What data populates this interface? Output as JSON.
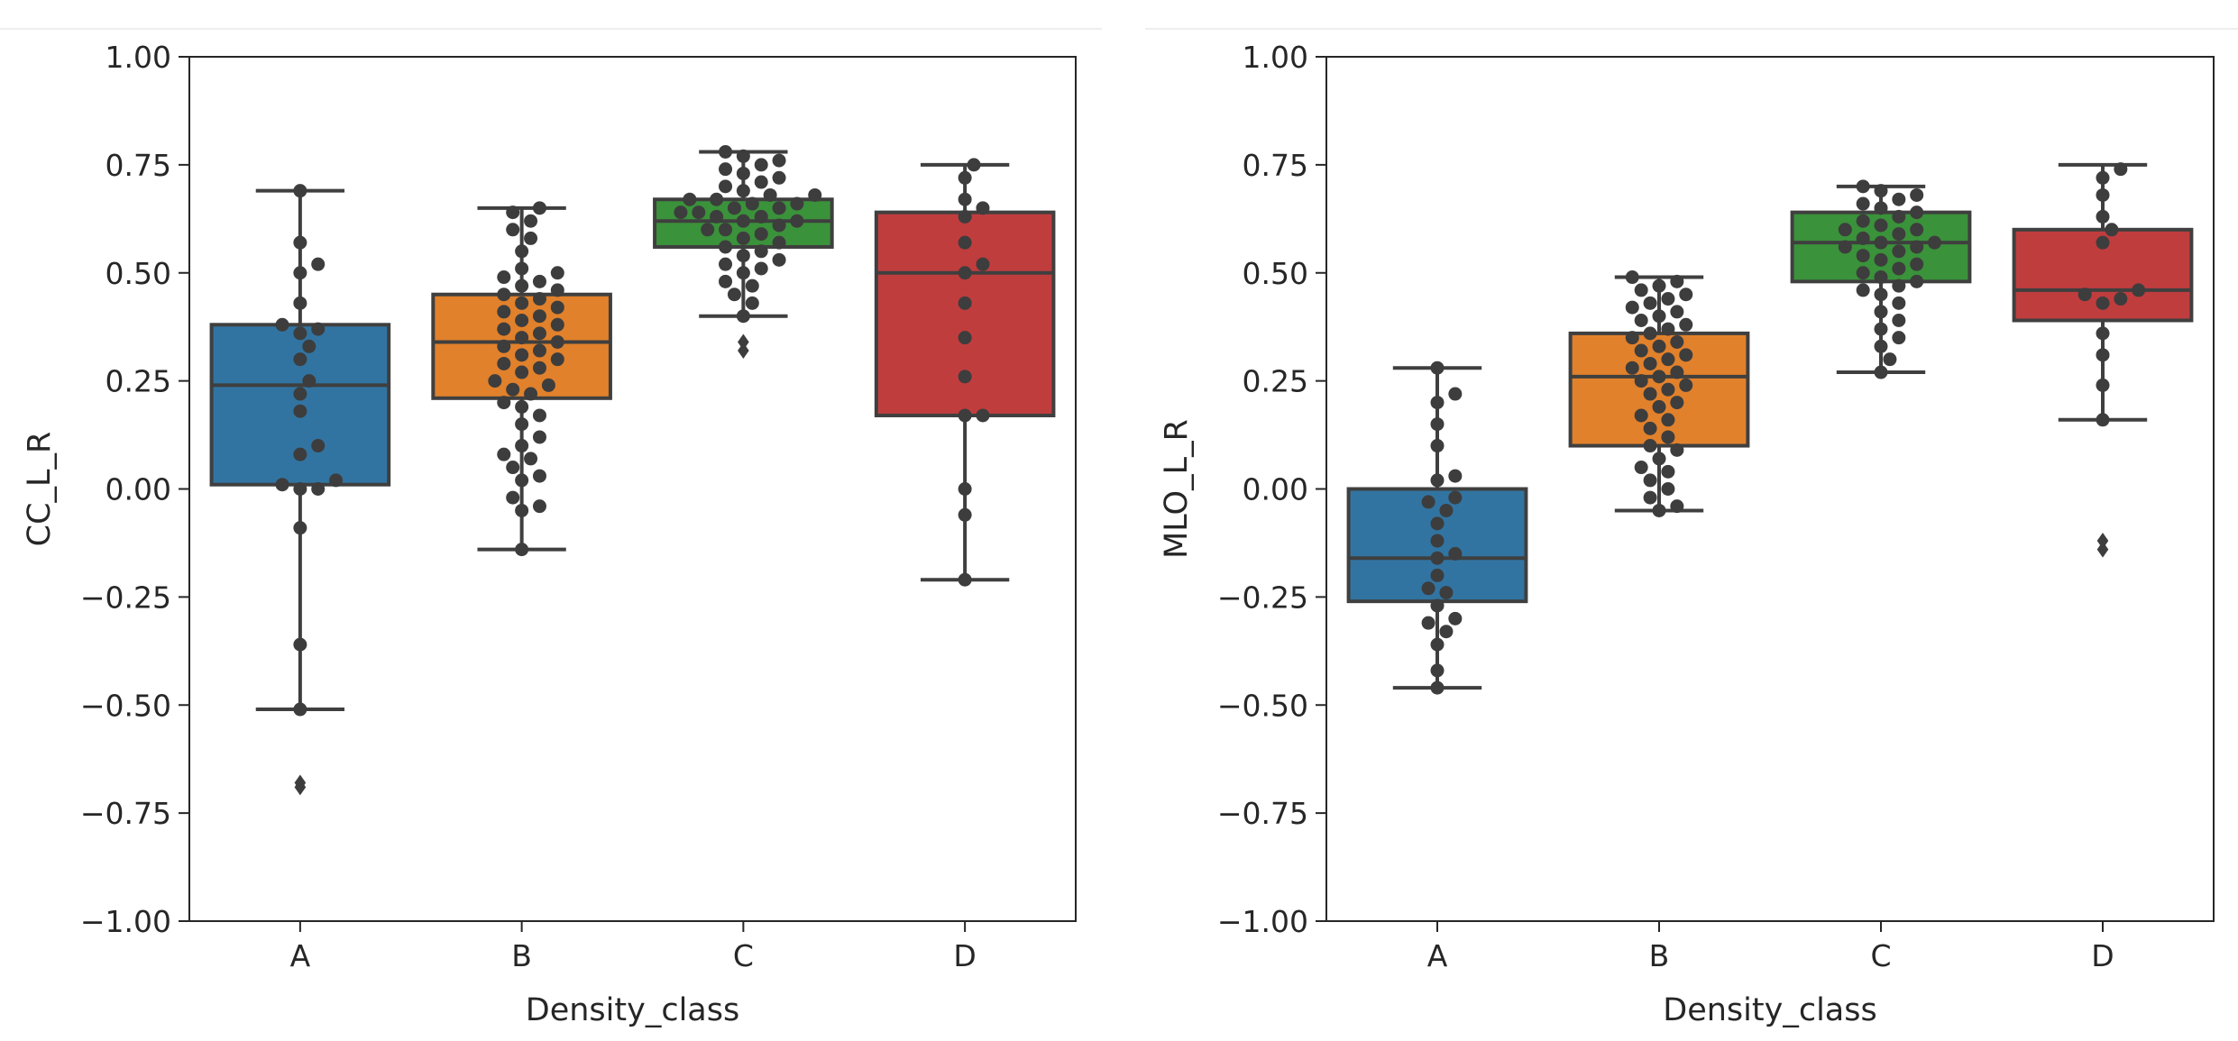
{
  "chart_data": [
    {
      "type": "box",
      "xlabel": "Density_class",
      "ylabel": "CC_L_R",
      "ylim": [
        -1.0,
        1.0
      ],
      "yticks": [
        "1.00",
        "0.75",
        "0.50",
        "0.25",
        "0.00",
        "−0.25",
        "−0.50",
        "−0.75",
        "−1.00"
      ],
      "ytick_values": [
        1.0,
        0.75,
        0.5,
        0.25,
        0.0,
        -0.25,
        -0.5,
        -0.75,
        -1.0
      ],
      "categories": [
        "A",
        "B",
        "C",
        "D"
      ],
      "boxes": [
        {
          "category": "A",
          "color": "#3274a1",
          "q1": 0.01,
          "median": 0.24,
          "q3": 0.38,
          "whisker_low": -0.51,
          "whisker_high": 0.69,
          "outliers": [
            -0.69,
            -0.68
          ]
        },
        {
          "category": "B",
          "color": "#e1812c",
          "q1": 0.21,
          "median": 0.34,
          "q3": 0.45,
          "whisker_low": -0.14,
          "whisker_high": 0.65,
          "outliers": []
        },
        {
          "category": "C",
          "color": "#3a923a",
          "q1": 0.56,
          "median": 0.62,
          "q3": 0.67,
          "whisker_low": 0.4,
          "whisker_high": 0.78,
          "outliers": [
            0.34,
            0.32
          ]
        },
        {
          "category": "D",
          "color": "#c03d3e",
          "q1": 0.17,
          "median": 0.5,
          "q3": 0.64,
          "whisker_low": -0.21,
          "whisker_high": 0.75,
          "outliers": []
        }
      ],
      "swarm": {
        "A": [
          -0.51,
          -0.36,
          -0.09,
          0.0,
          0.0,
          0.01,
          0.02,
          0.08,
          0.1,
          0.18,
          0.22,
          0.25,
          0.3,
          0.33,
          0.36,
          0.37,
          0.38,
          0.43,
          0.5,
          0.52,
          0.57,
          0.69
        ],
        "B": [
          -0.14,
          -0.05,
          -0.04,
          -0.02,
          0.02,
          0.03,
          0.05,
          0.07,
          0.08,
          0.1,
          0.12,
          0.15,
          0.17,
          0.19,
          0.2,
          0.22,
          0.23,
          0.24,
          0.25,
          0.27,
          0.28,
          0.29,
          0.3,
          0.31,
          0.32,
          0.33,
          0.34,
          0.35,
          0.36,
          0.37,
          0.38,
          0.39,
          0.4,
          0.41,
          0.42,
          0.43,
          0.44,
          0.45,
          0.46,
          0.47,
          0.48,
          0.49,
          0.5,
          0.51,
          0.55,
          0.58,
          0.6,
          0.62,
          0.64,
          0.65
        ],
        "C": [
          0.4,
          0.43,
          0.45,
          0.47,
          0.48,
          0.5,
          0.51,
          0.52,
          0.53,
          0.54,
          0.55,
          0.56,
          0.57,
          0.58,
          0.59,
          0.6,
          0.6,
          0.61,
          0.62,
          0.62,
          0.63,
          0.63,
          0.64,
          0.64,
          0.65,
          0.65,
          0.66,
          0.66,
          0.67,
          0.67,
          0.68,
          0.68,
          0.69,
          0.7,
          0.71,
          0.72,
          0.73,
          0.74,
          0.75,
          0.76,
          0.77,
          0.78
        ],
        "D": [
          -0.21,
          -0.06,
          0.0,
          0.17,
          0.17,
          0.26,
          0.35,
          0.43,
          0.5,
          0.52,
          0.57,
          0.63,
          0.65,
          0.67,
          0.72,
          0.75
        ]
      }
    },
    {
      "type": "box",
      "xlabel": "Density_class",
      "ylabel": "MLO_L_R",
      "ylim": [
        -1.0,
        1.0
      ],
      "yticks": [
        "1.00",
        "0.75",
        "0.50",
        "0.25",
        "0.00",
        "−0.25",
        "−0.50",
        "−0.75",
        "−1.00"
      ],
      "ytick_values": [
        1.0,
        0.75,
        0.5,
        0.25,
        0.0,
        -0.25,
        -0.5,
        -0.75,
        -1.0
      ],
      "categories": [
        "A",
        "B",
        "C",
        "D"
      ],
      "boxes": [
        {
          "category": "A",
          "color": "#3274a1",
          "q1": -0.26,
          "median": -0.16,
          "q3": 0.0,
          "whisker_low": -0.46,
          "whisker_high": 0.28,
          "outliers": []
        },
        {
          "category": "B",
          "color": "#e1812c",
          "q1": 0.1,
          "median": 0.26,
          "q3": 0.36,
          "whisker_low": -0.05,
          "whisker_high": 0.49,
          "outliers": []
        },
        {
          "category": "C",
          "color": "#3a923a",
          "q1": 0.48,
          "median": 0.57,
          "q3": 0.64,
          "whisker_low": 0.27,
          "whisker_high": 0.7,
          "outliers": []
        },
        {
          "category": "D",
          "color": "#c03d3e",
          "q1": 0.39,
          "median": 0.46,
          "q3": 0.6,
          "whisker_low": 0.16,
          "whisker_high": 0.75,
          "outliers": [
            -0.12,
            -0.14
          ]
        }
      ],
      "swarm": {
        "A": [
          -0.46,
          -0.42,
          -0.36,
          -0.33,
          -0.31,
          -0.3,
          -0.27,
          -0.24,
          -0.23,
          -0.2,
          -0.16,
          -0.15,
          -0.12,
          -0.08,
          -0.05,
          -0.03,
          -0.02,
          0.02,
          0.03,
          0.1,
          0.15,
          0.2,
          0.22,
          0.28
        ],
        "B": [
          -0.05,
          -0.04,
          -0.02,
          0.0,
          0.02,
          0.04,
          0.05,
          0.07,
          0.09,
          0.1,
          0.12,
          0.14,
          0.16,
          0.17,
          0.19,
          0.2,
          0.22,
          0.23,
          0.24,
          0.25,
          0.26,
          0.27,
          0.28,
          0.29,
          0.3,
          0.31,
          0.32,
          0.33,
          0.34,
          0.35,
          0.36,
          0.37,
          0.38,
          0.39,
          0.4,
          0.41,
          0.42,
          0.43,
          0.44,
          0.45,
          0.46,
          0.47,
          0.48,
          0.49
        ],
        "C": [
          0.27,
          0.3,
          0.33,
          0.35,
          0.37,
          0.39,
          0.41,
          0.43,
          0.45,
          0.46,
          0.47,
          0.48,
          0.49,
          0.5,
          0.51,
          0.52,
          0.53,
          0.54,
          0.55,
          0.56,
          0.56,
          0.57,
          0.57,
          0.58,
          0.59,
          0.6,
          0.6,
          0.61,
          0.62,
          0.63,
          0.64,
          0.65,
          0.66,
          0.67,
          0.68,
          0.69,
          0.7
        ],
        "D": [
          0.16,
          0.24,
          0.31,
          0.36,
          0.43,
          0.44,
          0.45,
          0.46,
          0.57,
          0.6,
          0.63,
          0.68,
          0.72,
          0.74
        ]
      }
    }
  ],
  "style": {
    "edge_color": "#3f3f3f",
    "point_color": "#3d3d3d",
    "axis_color": "#262626"
  }
}
